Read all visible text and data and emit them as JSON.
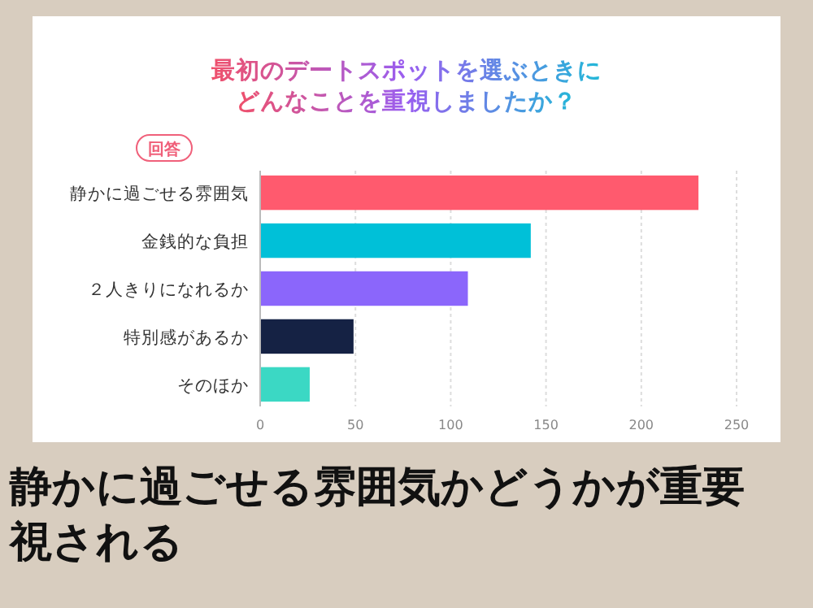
{
  "chart_data": {
    "type": "bar",
    "orientation": "horizontal",
    "title": "最初のデートスポットを選ぶときにどんなことを重視しましたか？",
    "ylabel": "回答",
    "categories": [
      "静かに過ごせる雰囲気",
      "金銭的な負担",
      "２人きりになれるか",
      "特別感があるか",
      "そのほか"
    ],
    "values": [
      230,
      142,
      109,
      49,
      26
    ],
    "colors": [
      "#ff5a6e",
      "#00c0d8",
      "#8b66fb",
      "#152244",
      "#3bd8c4"
    ],
    "xlim": [
      0,
      250
    ],
    "xticks": [
      0,
      50,
      100,
      150,
      200,
      250
    ],
    "grid": "x",
    "annotations": [
      "静かに過ごせる雰囲気かどうかが重要視される"
    ]
  }
}
